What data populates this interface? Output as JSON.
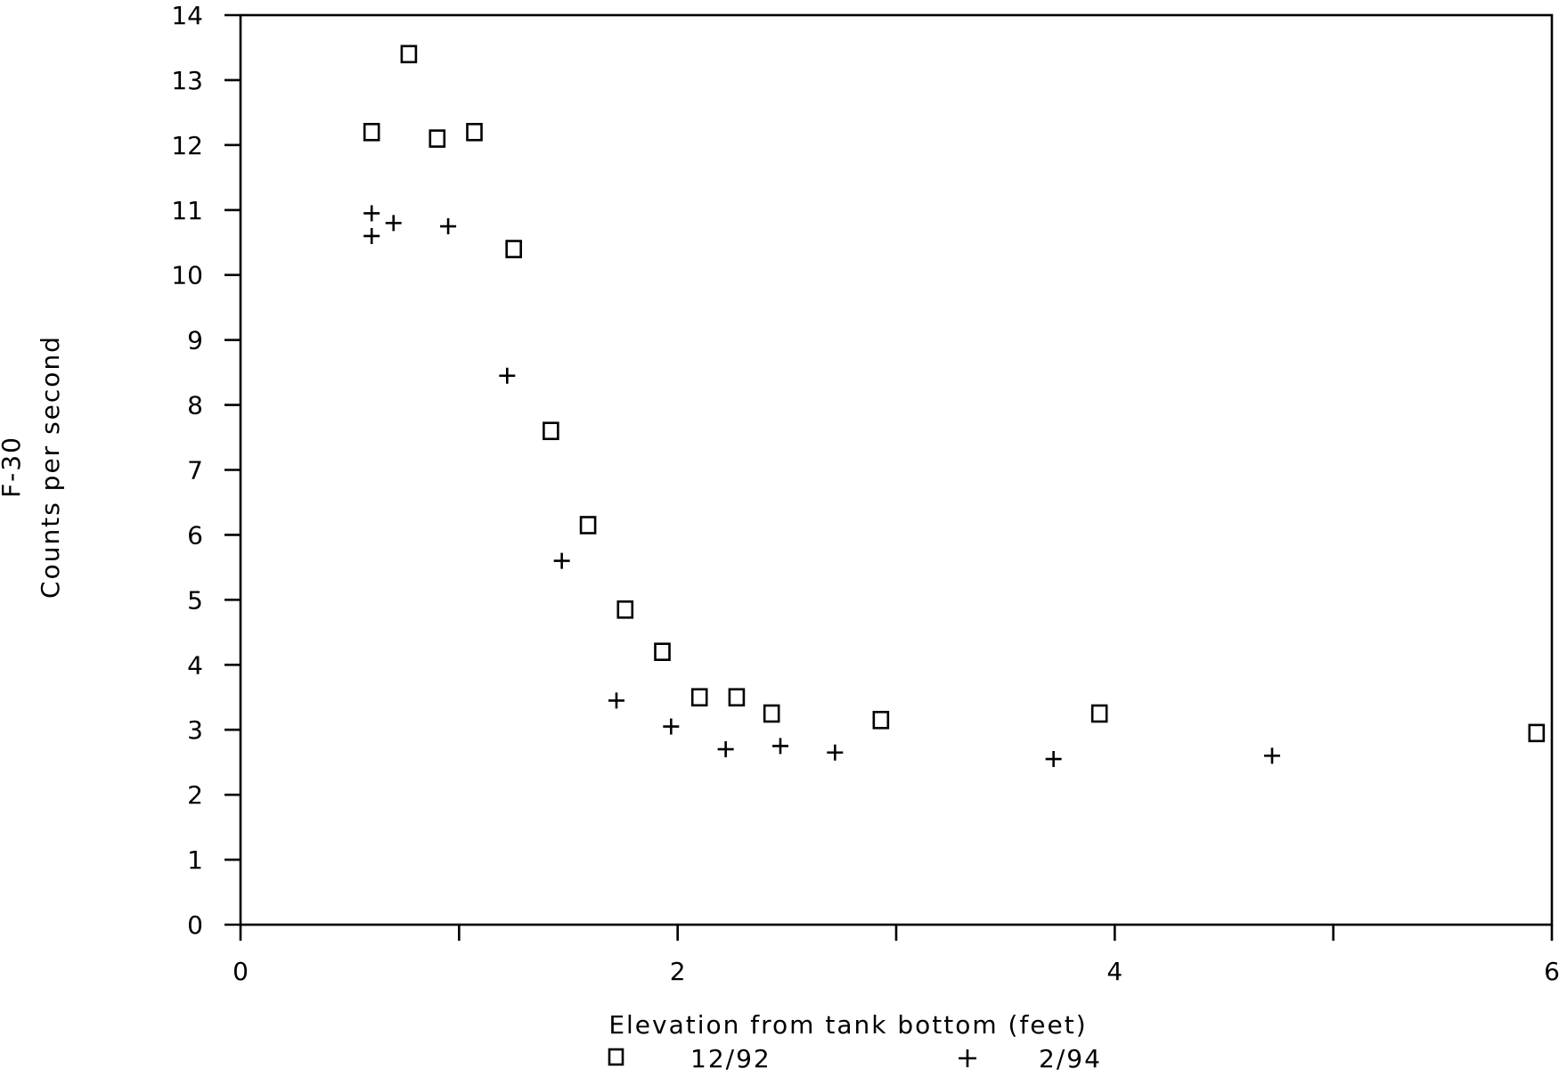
{
  "chart_data": {
    "type": "scatter",
    "title": "",
    "figure_id": "F-30",
    "xlabel": "Elevation from tank bottom (feet)",
    "ylabel": "Counts per second",
    "xlim": [
      0,
      6
    ],
    "ylim": [
      0,
      14
    ],
    "x_ticks": [
      0,
      2,
      4,
      6
    ],
    "y_ticks": [
      0,
      1,
      2,
      3,
      4,
      5,
      6,
      7,
      8,
      9,
      10,
      11,
      12,
      13,
      14
    ],
    "grid": false,
    "legend_position": "bottom",
    "series": [
      {
        "name": "12/92",
        "marker": "square",
        "points": [
          {
            "x": 0.6,
            "y": 12.2
          },
          {
            "x": 0.77,
            "y": 13.4
          },
          {
            "x": 0.9,
            "y": 12.1
          },
          {
            "x": 1.07,
            "y": 12.2
          },
          {
            "x": 1.25,
            "y": 10.4
          },
          {
            "x": 1.42,
            "y": 7.6
          },
          {
            "x": 1.59,
            "y": 6.15
          },
          {
            "x": 1.76,
            "y": 4.85
          },
          {
            "x": 1.93,
            "y": 4.2
          },
          {
            "x": 2.1,
            "y": 3.5
          },
          {
            "x": 2.27,
            "y": 3.5
          },
          {
            "x": 2.43,
            "y": 3.25
          },
          {
            "x": 2.93,
            "y": 3.15
          },
          {
            "x": 3.93,
            "y": 3.25
          },
          {
            "x": 5.93,
            "y": 2.95
          }
        ]
      },
      {
        "name": "2/94",
        "marker": "plus",
        "points": [
          {
            "x": 0.6,
            "y": 10.95
          },
          {
            "x": 0.6,
            "y": 10.6
          },
          {
            "x": 0.7,
            "y": 10.8
          },
          {
            "x": 0.95,
            "y": 10.75
          },
          {
            "x": 1.22,
            "y": 8.45
          },
          {
            "x": 1.47,
            "y": 5.6
          },
          {
            "x": 1.72,
            "y": 3.45
          },
          {
            "x": 1.97,
            "y": 3.05
          },
          {
            "x": 2.22,
            "y": 2.7
          },
          {
            "x": 2.47,
            "y": 2.75
          },
          {
            "x": 2.72,
            "y": 2.65
          },
          {
            "x": 3.72,
            "y": 2.55
          },
          {
            "x": 4.72,
            "y": 2.6
          }
        ]
      }
    ]
  }
}
